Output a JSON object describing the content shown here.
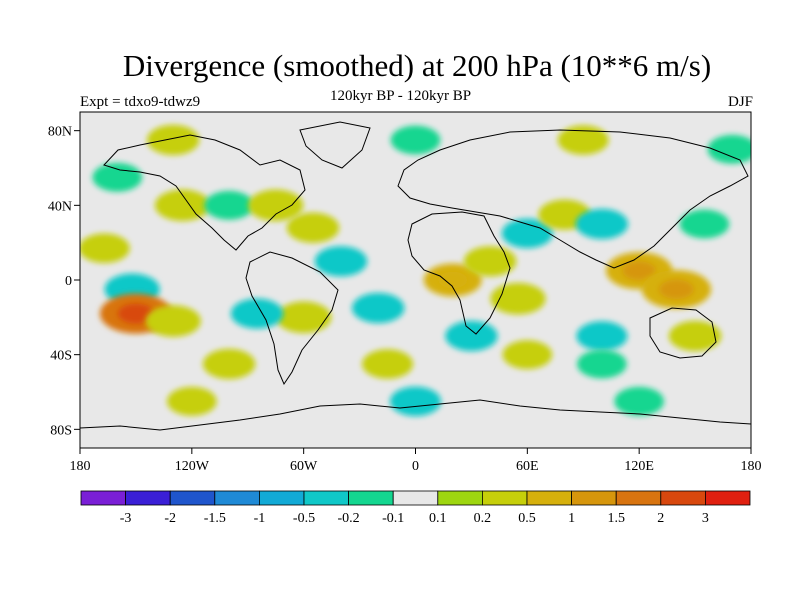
{
  "title": "Divergence (smoothed) at 200 hPa (10**6 m/s)",
  "subtitle": "120kyr BP - 120kyr BP",
  "left_label": "Expt = tdxo9-tdwz9",
  "right_label": "DJF",
  "lat_ticks": [
    {
      "value": 80,
      "label": "80N"
    },
    {
      "value": 40,
      "label": "40N"
    },
    {
      "value": 0,
      "label": "0"
    },
    {
      "value": -40,
      "label": "40S"
    },
    {
      "value": -80,
      "label": "80S"
    }
  ],
  "lon_ticks": [
    {
      "value": -180,
      "label": "180"
    },
    {
      "value": -120,
      "label": "120W"
    },
    {
      "value": -60,
      "label": "60W"
    },
    {
      "value": 0,
      "label": "0"
    },
    {
      "value": 60,
      "label": "60E"
    },
    {
      "value": 120,
      "label": "120E"
    },
    {
      "value": 180,
      "label": "180"
    }
  ],
  "colorbar": {
    "colors": [
      "#7a1fd6",
      "#3a1fd6",
      "#1f55cc",
      "#1f8ad6",
      "#12aad6",
      "#10c8c8",
      "#14d690",
      "#e8e8e8",
      "#9ed610",
      "#c6cf0a",
      "#d6b00c",
      "#d6960c",
      "#d87410",
      "#d8480e",
      "#e02010"
    ],
    "labels": [
      "-3",
      "-2",
      "-1.5",
      "-1",
      "-0.5",
      "-0.2",
      "-0.1",
      "0.1",
      "0.2",
      "0.5",
      "1",
      "1.5",
      "2",
      "3"
    ]
  },
  "chart_data": {
    "type": "heatmap",
    "title": "Divergence (smoothed) at 200 hPa (10**6 m/s)",
    "subtitle": "120kyr BP - 120kyr BP",
    "season": "DJF",
    "experiment": "tdxo9-tdwz9",
    "xlim": [
      -180,
      180
    ],
    "ylim": [
      -90,
      90
    ],
    "levels": [
      -3,
      -2,
      -1.5,
      -1,
      -0.5,
      -0.2,
      -0.1,
      0.1,
      0.2,
      0.5,
      1,
      1.5,
      2,
      3
    ],
    "regions": [
      {
        "lon": -167,
        "lat": 17,
        "value": 0.25
      },
      {
        "lon": -152,
        "lat": -5,
        "value": -0.4
      },
      {
        "lon": -150,
        "lat": -18,
        "value": 1.8
      },
      {
        "lon": -130,
        "lat": -22,
        "value": 0.4
      },
      {
        "lon": -125,
        "lat": 40,
        "value": 0.4
      },
      {
        "lon": -100,
        "lat": 40,
        "value": -0.2
      },
      {
        "lon": -75,
        "lat": 40,
        "value": 0.4
      },
      {
        "lon": -55,
        "lat": 28,
        "value": 0.3
      },
      {
        "lon": -40,
        "lat": 10,
        "value": -0.3
      },
      {
        "lon": -60,
        "lat": -20,
        "value": 0.4
      },
      {
        "lon": -85,
        "lat": -18,
        "value": -0.3
      },
      {
        "lon": -100,
        "lat": -45,
        "value": 0.3
      },
      {
        "lon": -20,
        "lat": -15,
        "value": -0.3
      },
      {
        "lon": -15,
        "lat": -45,
        "value": 0.25
      },
      {
        "lon": 20,
        "lat": 0,
        "value": 0.5
      },
      {
        "lon": 40,
        "lat": 10,
        "value": 0.3
      },
      {
        "lon": 55,
        "lat": -10,
        "value": 0.4
      },
      {
        "lon": 30,
        "lat": -30,
        "value": -0.3
      },
      {
        "lon": 60,
        "lat": 25,
        "value": -0.25
      },
      {
        "lon": 80,
        "lat": 35,
        "value": 0.3
      },
      {
        "lon": 100,
        "lat": 30,
        "value": -0.3
      },
      {
        "lon": 120,
        "lat": 5,
        "value": 0.8
      },
      {
        "lon": 140,
        "lat": -5,
        "value": 0.9
      },
      {
        "lon": 155,
        "lat": 30,
        "value": -0.2
      },
      {
        "lon": 150,
        "lat": -30,
        "value": 0.3
      },
      {
        "lon": 100,
        "lat": -30,
        "value": -0.25
      },
      {
        "lon": 60,
        "lat": -40,
        "value": 0.2
      },
      {
        "lon": 100,
        "lat": -45,
        "value": -0.2
      },
      {
        "lon": -130,
        "lat": 75,
        "value": 0.3
      },
      {
        "lon": -160,
        "lat": 55,
        "value": -0.2
      },
      {
        "lon": 0,
        "lat": 75,
        "value": -0.2
      },
      {
        "lon": 90,
        "lat": 75,
        "value": 0.25
      },
      {
        "lon": 170,
        "lat": 70,
        "value": -0.2
      },
      {
        "lon": 0,
        "lat": -65,
        "value": -0.25
      },
      {
        "lon": -120,
        "lat": -65,
        "value": 0.2
      },
      {
        "lon": 120,
        "lat": -65,
        "value": -0.2
      }
    ]
  }
}
